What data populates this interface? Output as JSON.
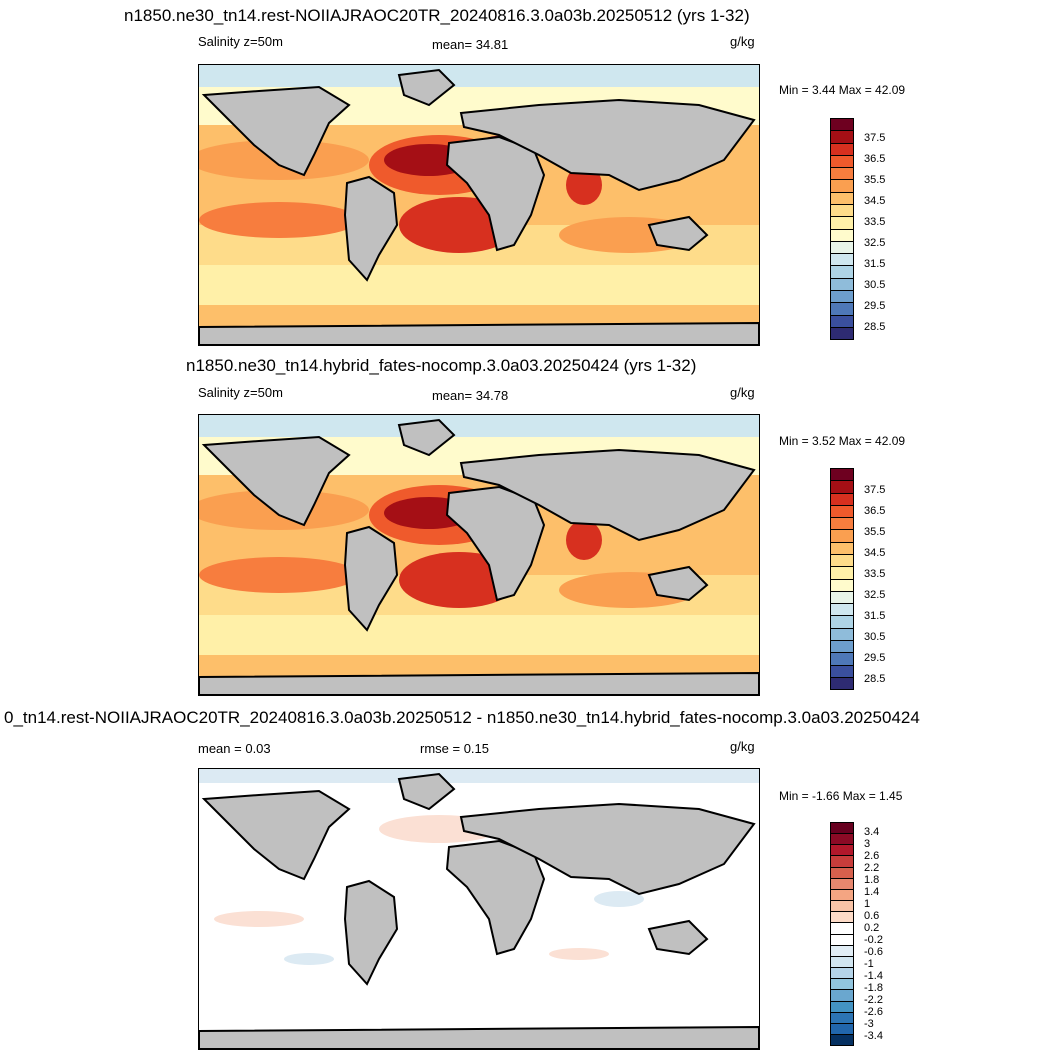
{
  "panels": [
    {
      "title": "n1850.ne30_tn14.rest-NOIIAJRAOC20TR_20240816.3.0a03b.20250512 (yrs 1-32)",
      "left_label": "Salinity z=50m",
      "center_label": "mean=  34.81",
      "units": "g/kg",
      "minmax": "Min =   3.44 Max =  42.09",
      "ticks": [
        "37.5",
        "36.5",
        "35.5",
        "34.5",
        "33.5",
        "32.5",
        "31.5",
        "30.5",
        "29.5",
        "28.5"
      ],
      "colors": [
        "#6e0020",
        "#a50f15",
        "#d7301f",
        "#ef5a2c",
        "#f77d3e",
        "#fa9f50",
        "#fdbf6a",
        "#fedc8a",
        "#fff0a8",
        "#fffbcc",
        "#e8f4e8",
        "#cfe7ef",
        "#aed4e6",
        "#8fbcda",
        "#6d9ecd",
        "#4e78b8",
        "#3a4f9e",
        "#2e2b72"
      ]
    },
    {
      "title": "n1850.ne30_tn14.hybrid_fates-nocomp.3.0a03.20250424 (yrs 1-32)",
      "left_label": "Salinity z=50m",
      "center_label": "mean=  34.78",
      "units": "g/kg",
      "minmax": "Min =   3.52 Max =  42.09",
      "ticks": [
        "37.5",
        "36.5",
        "35.5",
        "34.5",
        "33.5",
        "32.5",
        "31.5",
        "30.5",
        "29.5",
        "28.5"
      ],
      "colors": [
        "#6e0020",
        "#a50f15",
        "#d7301f",
        "#ef5a2c",
        "#f77d3e",
        "#fa9f50",
        "#fdbf6a",
        "#fedc8a",
        "#fff0a8",
        "#fffbcc",
        "#e8f4e8",
        "#cfe7ef",
        "#aed4e6",
        "#8fbcda",
        "#6d9ecd",
        "#4e78b8",
        "#3a4f9e",
        "#2e2b72"
      ]
    },
    {
      "title": "0_tn14.rest-NOIIAJRAOC20TR_20240816.3.0a03b.20250512 - n1850.ne30_tn14.hybrid_fates-nocomp.3.0a03.20250424",
      "left_label": "mean =   0.03",
      "center_label": "rmse =   0.15",
      "units": "g/kg",
      "minmax": "Min =  -1.66 Max =   1.45",
      "ticks": [
        "3.4",
        "3",
        "2.6",
        "2.2",
        "1.8",
        "1.4",
        "1",
        "0.6",
        "0.2",
        "-0.2",
        "-0.6",
        "-1",
        "-1.4",
        "-1.8",
        "-2.2",
        "-2.6",
        "-3",
        "-3.4"
      ],
      "colors": [
        "#67001f",
        "#8b0a25",
        "#b2182b",
        "#c83d3b",
        "#d6604d",
        "#e7876e",
        "#f4a582",
        "#f8c3a6",
        "#fddbc7",
        "#ffffff",
        "#ffffff",
        "#e1edf5",
        "#d1e5f0",
        "#b5d4e9",
        "#92c5de",
        "#6aa7cf",
        "#4393c3",
        "#2c74b4",
        "#2166ac",
        "#053061"
      ]
    }
  ],
  "colors": {
    "land": "#c0c0c0",
    "coast": "#000000",
    "hi_salinity": "#d7301f",
    "mid_salinity": "#fa9f50",
    "low_salinity": "#fff0a8",
    "fresh": "#cfe7ef",
    "diff_background": "#ffffff",
    "diff_positive": "#fbe0d4",
    "diff_negative": "#dceaf3"
  }
}
